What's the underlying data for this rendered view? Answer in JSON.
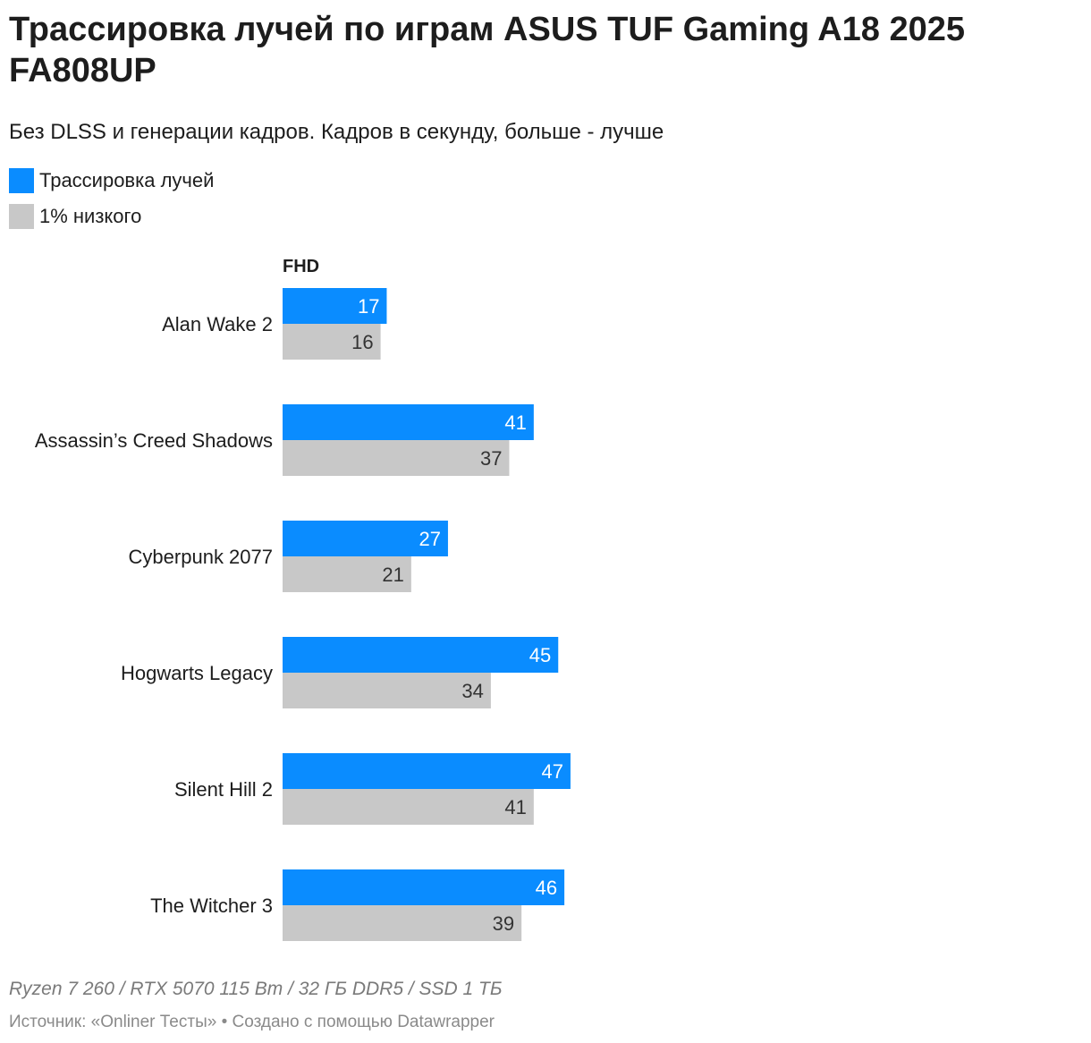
{
  "header": {
    "title": "Трассировка лучей по играм ASUS TUF Gaming A18 2025 FA808UP",
    "subtitle": "Без DLSS и генерации кадров. Кадров в секунду, больше - лучше"
  },
  "legend": [
    {
      "label": "Трассировка лучей",
      "color": "#0a8cff"
    },
    {
      "label": "1% низкого",
      "color": "#c8c8c8"
    }
  ],
  "chart_data": {
    "type": "bar",
    "orientation": "horizontal",
    "panel_title": "FHD",
    "categories": [
      "Alan Wake 2",
      "Assassin’s Creed Shadows",
      "Cyberpunk 2077",
      "Hogwarts Legacy",
      "Silent Hill 2",
      "The Witcher 3"
    ],
    "series": [
      {
        "name": "Трассировка лучей",
        "color": "#0a8cff",
        "label_color": "#ffffff",
        "values": [
          17,
          41,
          27,
          45,
          47,
          46
        ]
      },
      {
        "name": "1% низкого",
        "color": "#c8c8c8",
        "label_color": "#333333",
        "values": [
          16,
          37,
          21,
          34,
          41,
          39
        ]
      }
    ],
    "xlim": [
      0,
      100
    ],
    "grid": false,
    "legend_position": "top-left"
  },
  "notes": "Ryzen 7 260 / RTX 5070 115 Вт / 32 ГБ DDR5 / SSD 1 ТБ",
  "footer": {
    "source_label": "Источник:",
    "source_name": "«Onliner Тесты»",
    "separator": "•",
    "created_with": "Создано с помощью Datawrapper"
  }
}
